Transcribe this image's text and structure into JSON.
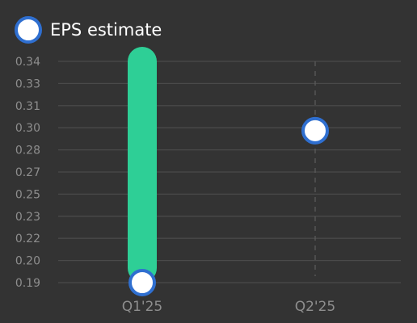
{
  "chart_data": {
    "type": "scatter",
    "categories": [
      "Q1'25",
      "Q2'25"
    ],
    "series": [
      {
        "name": "EPS estimate",
        "values": [
          0.19,
          0.293
        ],
        "marker_color": "#ffffff",
        "marker_edge_color": "#2f6fd0"
      }
    ],
    "range_bars": [
      {
        "category": "Q1'25",
        "low": 0.19,
        "high": 0.34,
        "color": "#2ecf96"
      }
    ],
    "y_ticks": [
      "0.19",
      "0.20",
      "0.22",
      "0.23",
      "0.25",
      "0.27",
      "0.28",
      "0.30",
      "0.31",
      "0.33",
      "0.34"
    ],
    "ylim": [
      0.19,
      0.34
    ],
    "grid": "horizontal",
    "legend_position": "top-left",
    "dashed_guide_category": "Q2'25",
    "colors": {
      "background": "#333333",
      "grid": "#4a4a4a",
      "tick_text": "#8e8e8e",
      "legend_text": "#ffffff"
    }
  }
}
